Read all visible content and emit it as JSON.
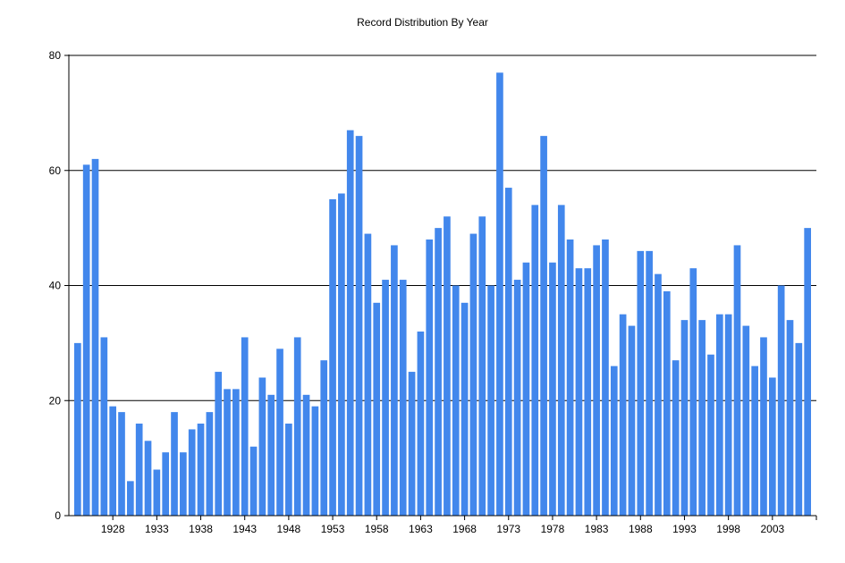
{
  "chart_data": {
    "type": "bar",
    "title": "Record Distribution By Year",
    "xlabel": "",
    "ylabel": "",
    "color": "#4287ec",
    "grid": true,
    "ylim": [
      0,
      80
    ],
    "yticks": [
      0,
      20,
      40,
      60,
      80
    ],
    "xticks": [
      1928,
      1933,
      1938,
      1943,
      1948,
      1953,
      1958,
      1963,
      1968,
      1973,
      1978,
      1983,
      1988,
      1993,
      1998,
      2003
    ],
    "categories": [
      1924,
      1925,
      1926,
      1927,
      1928,
      1929,
      1930,
      1931,
      1932,
      1933,
      1934,
      1935,
      1936,
      1937,
      1938,
      1939,
      1940,
      1941,
      1942,
      1943,
      1944,
      1945,
      1946,
      1947,
      1948,
      1949,
      1950,
      1951,
      1952,
      1953,
      1954,
      1955,
      1956,
      1957,
      1958,
      1959,
      1960,
      1961,
      1962,
      1963,
      1964,
      1965,
      1966,
      1967,
      1968,
      1969,
      1970,
      1971,
      1972,
      1973,
      1974,
      1975,
      1976,
      1977,
      1978,
      1979,
      1980,
      1981,
      1982,
      1983,
      1984,
      1985,
      1986,
      1987,
      1988,
      1989,
      1990,
      1991,
      1992,
      1993,
      1994,
      1995,
      1996,
      1997,
      1998,
      1999,
      2000,
      2001,
      2002,
      2003,
      2004,
      2005,
      2006,
      2007
    ],
    "values": [
      30,
      61,
      62,
      31,
      19,
      18,
      6,
      16,
      13,
      8,
      11,
      18,
      11,
      15,
      16,
      18,
      25,
      22,
      22,
      31,
      12,
      24,
      21,
      29,
      16,
      31,
      21,
      19,
      27,
      55,
      56,
      67,
      66,
      49,
      37,
      41,
      47,
      41,
      25,
      32,
      48,
      50,
      52,
      40,
      37,
      49,
      52,
      40,
      77,
      57,
      41,
      44,
      54,
      66,
      44,
      54,
      48,
      43,
      43,
      47,
      48,
      26,
      35,
      33,
      46,
      46,
      42,
      39,
      27,
      34,
      43,
      34,
      28,
      35,
      35,
      47,
      33,
      26,
      31,
      24,
      40,
      34,
      30,
      50
    ]
  }
}
